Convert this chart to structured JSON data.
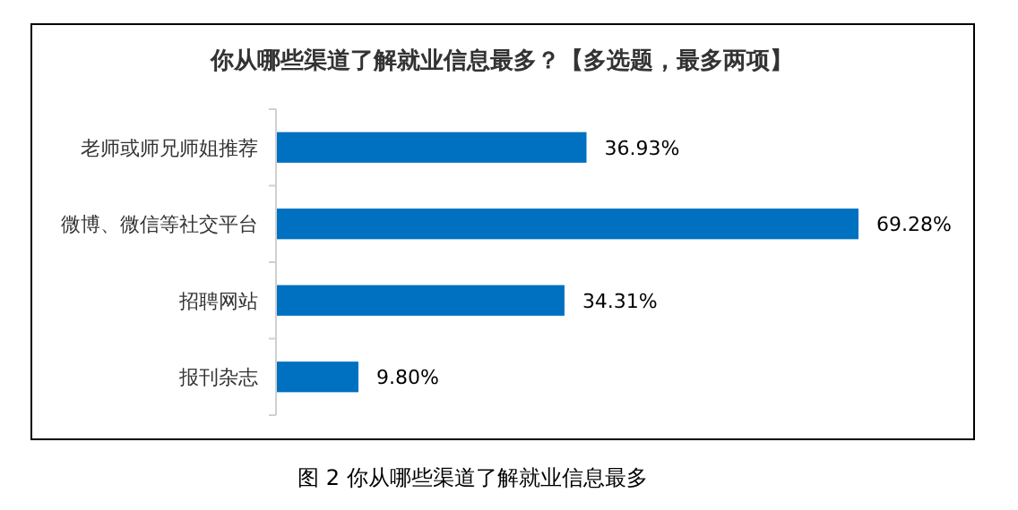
{
  "chart_data": {
    "type": "bar",
    "orientation": "horizontal",
    "title": "你从哪些渠道了解就业信息最多？【多选题，最多两项】",
    "categories": [
      "老师或师兄师姐推荐",
      "微博、微信等社交平台",
      "招聘网站",
      "报刊杂志"
    ],
    "values": [
      36.93,
      69.28,
      34.31,
      9.8
    ],
    "value_labels": [
      "36.93%",
      "69.28%",
      "34.31%",
      "9.80%"
    ],
    "color": "#0070c0",
    "annotations": [
      "图 2 你从哪些渠道了解就业信息最多"
    ]
  }
}
